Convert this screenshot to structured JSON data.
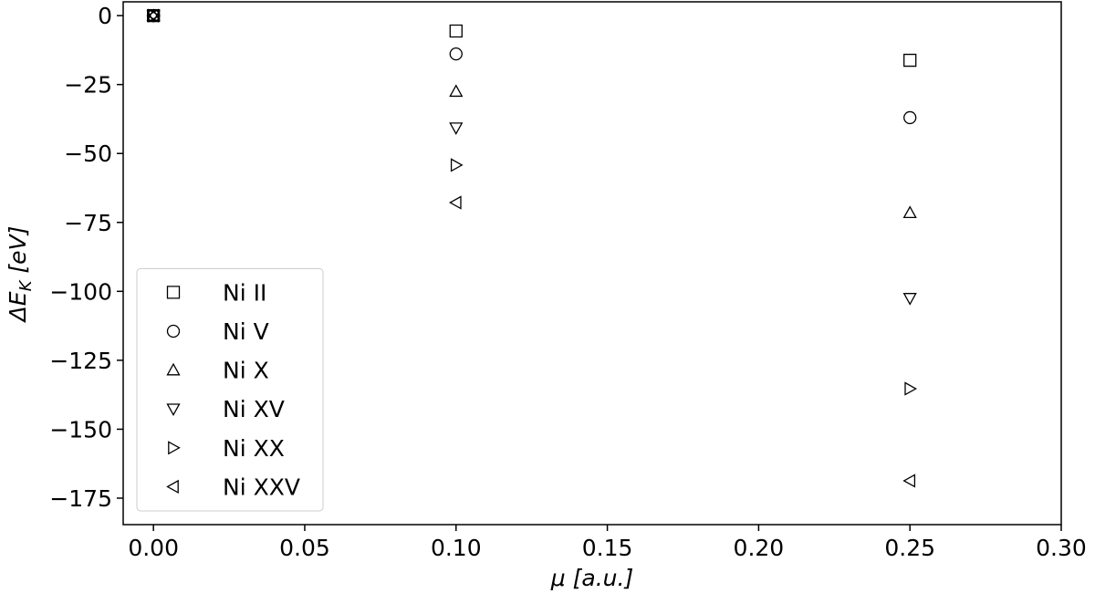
{
  "chart_data": {
    "type": "scatter",
    "ylabel": {
      "main": "ΔE",
      "sub": "K",
      "unit": "[eV]"
    },
    "xlabel": {
      "main": "μ",
      "unit": "[a.u.]"
    },
    "x": [
      0,
      0.1,
      0.25
    ],
    "series": [
      {
        "name": "Ni II",
        "color": "#000000",
        "marker": "square",
        "values": [
          0,
          -5.6,
          -16.2
        ]
      },
      {
        "name": "Ni V",
        "color": "#000000",
        "marker": "circle",
        "values": [
          0,
          -13.9,
          -37
        ]
      },
      {
        "name": "Ni X",
        "color": "#000000",
        "marker": "triangle-up",
        "values": [
          0,
          -27.5,
          -71.5
        ]
      },
      {
        "name": "Ni XV",
        "color": "#000000",
        "marker": "triangle-down",
        "values": [
          0,
          -40.7,
          -102.5
        ]
      },
      {
        "name": "Ni XX",
        "color": "#000000",
        "marker": "triangle-right",
        "values": [
          0,
          -54.2,
          -135.3
        ]
      },
      {
        "name": "Ni XXV",
        "color": "#000000",
        "marker": "triangle-left",
        "values": [
          0,
          -67.8,
          -168.7
        ]
      }
    ],
    "xlim": [
      -0.01,
      0.3
    ],
    "ylim": [
      -184.6,
      5
    ],
    "xticks": [
      {
        "value": 0,
        "label": "0.00"
      },
      0.05,
      {
        "value": 0.1,
        "label": "0.10"
      },
      0.15,
      {
        "value": 0.2,
        "label": "0.20"
      },
      0.25,
      {
        "value": 0.3,
        "label": "0.30"
      }
    ],
    "yticks": [
      0,
      {
        "value": -25,
        "label": "−25"
      },
      {
        "value": -50,
        "label": "−50"
      },
      {
        "value": -75,
        "label": "−75"
      },
      {
        "value": -100,
        "label": "−100"
      },
      {
        "value": -125,
        "label": "−125"
      },
      {
        "value": -150,
        "label": "−150"
      },
      {
        "value": -175,
        "label": "−175"
      }
    ],
    "legend": "lower left"
  }
}
